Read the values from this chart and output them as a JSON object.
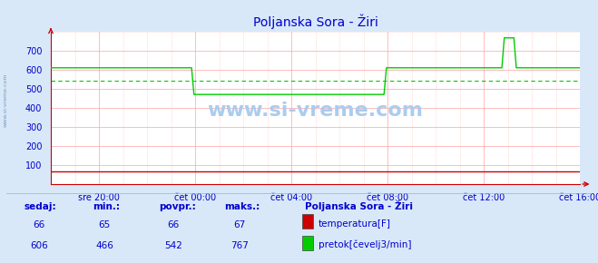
{
  "title": "Poljanska Sora - Žiri",
  "bg_color": "#d8e8f8",
  "plot_bg_color": "#ffffff",
  "grid_color_major": "#ffaaaa",
  "grid_color_minor": "#ffdddd",
  "x_labels": [
    "sre 20:00",
    "čet 00:00",
    "čet 04:00",
    "čet 08:00",
    "čet 12:00",
    "čet 16:00"
  ],
  "ylim": [
    0,
    800
  ],
  "yticks": [
    100,
    200,
    300,
    400,
    500,
    600,
    700
  ],
  "avg_line": 542,
  "temp_color": "#cc0000",
  "flow_color": "#00cc00",
  "avg_color": "#00cc00",
  "title_color": "#0000cc",
  "axis_color": "#cc0000",
  "text_color": "#0000cc",
  "watermark_color": "#aaccee",
  "temp_value": 66,
  "temp_min": 65,
  "temp_avg": 66,
  "temp_max": 67,
  "flow_value": 606,
  "flow_min": 466,
  "flow_avg": 542,
  "flow_max": 767,
  "station_name": "Poljanska Sora - Žiri",
  "legend_temp": "temperatura[F]",
  "legend_flow": "pretok[čevelj3/min]",
  "label_sedaj": "sedaj:",
  "label_min": "min.:",
  "label_povpr": "povpr.:",
  "label_maks": "maks.:",
  "flow_x": [
    0,
    5.85,
    5.95,
    13.85,
    13.95,
    18.75,
    18.85,
    19.25,
    19.35,
    22
  ],
  "flow_y": [
    610,
    610,
    470,
    470,
    610,
    610,
    767,
    767,
    610,
    610
  ],
  "temp_y_val": 66,
  "x_tick_pos": [
    2,
    6,
    10,
    14,
    18,
    22
  ],
  "xlim": [
    0,
    22
  ]
}
